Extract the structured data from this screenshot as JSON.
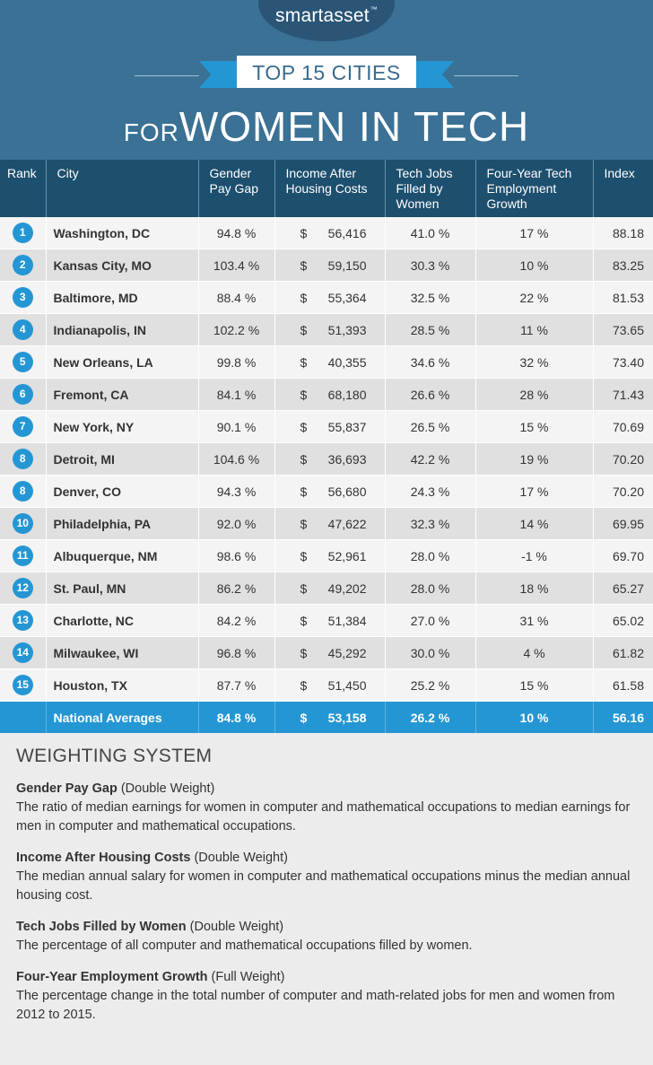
{
  "brand": {
    "name": "smartasset",
    "tm": "™"
  },
  "banner": {
    "ribbon": "TOP 15 CITIES",
    "headline_small": "FOR",
    "headline_large": "WOMEN IN TECH"
  },
  "table": {
    "headers": [
      "Rank",
      "City",
      "Gender Pay Gap",
      "Income After Housing Costs",
      "Tech Jobs Filled by Women",
      "Four-Year Tech Employment Growth",
      "Index"
    ],
    "rows": [
      {
        "rank": "1",
        "city": "Washington, DC",
        "gap": "94.8 %",
        "cur": "$",
        "income": "56,416",
        "tech": "41.0 %",
        "growth": "17 %",
        "index": "88.18"
      },
      {
        "rank": "2",
        "city": "Kansas City, MO",
        "gap": "103.4 %",
        "cur": "$",
        "income": "59,150",
        "tech": "30.3 %",
        "growth": "10 %",
        "index": "83.25"
      },
      {
        "rank": "3",
        "city": "Baltimore, MD",
        "gap": "88.4 %",
        "cur": "$",
        "income": "55,364",
        "tech": "32.5 %",
        "growth": "22 %",
        "index": "81.53"
      },
      {
        "rank": "4",
        "city": "Indianapolis, IN",
        "gap": "102.2 %",
        "cur": "$",
        "income": "51,393",
        "tech": "28.5 %",
        "growth": "11 %",
        "index": "73.65"
      },
      {
        "rank": "5",
        "city": "New Orleans, LA",
        "gap": "99.8 %",
        "cur": "$",
        "income": "40,355",
        "tech": "34.6 %",
        "growth": "32 %",
        "index": "73.40"
      },
      {
        "rank": "6",
        "city": "Fremont, CA",
        "gap": "84.1 %",
        "cur": "$",
        "income": "68,180",
        "tech": "26.6 %",
        "growth": "28 %",
        "index": "71.43"
      },
      {
        "rank": "7",
        "city": "New York, NY",
        "gap": "90.1 %",
        "cur": "$",
        "income": "55,837",
        "tech": "26.5 %",
        "growth": "15 %",
        "index": "70.69"
      },
      {
        "rank": "8",
        "city": "Detroit, MI",
        "gap": "104.6 %",
        "cur": "$",
        "income": "36,693",
        "tech": "42.2 %",
        "growth": "19 %",
        "index": "70.20"
      },
      {
        "rank": "8",
        "city": "Denver, CO",
        "gap": "94.3 %",
        "cur": "$",
        "income": "56,680",
        "tech": "24.3 %",
        "growth": "17 %",
        "index": "70.20"
      },
      {
        "rank": "10",
        "city": "Philadelphia, PA",
        "gap": "92.0 %",
        "cur": "$",
        "income": "47,622",
        "tech": "32.3 %",
        "growth": "14 %",
        "index": "69.95"
      },
      {
        "rank": "11",
        "city": "Albuquerque, NM",
        "gap": "98.6 %",
        "cur": "$",
        "income": "52,961",
        "tech": "28.0 %",
        "growth": "-1 %",
        "index": "69.70"
      },
      {
        "rank": "12",
        "city": "St. Paul, MN",
        "gap": "86.2 %",
        "cur": "$",
        "income": "49,202",
        "tech": "28.0 %",
        "growth": "18 %",
        "index": "65.27"
      },
      {
        "rank": "13",
        "city": "Charlotte, NC",
        "gap": "84.2 %",
        "cur": "$",
        "income": "51,384",
        "tech": "27.0 %",
        "growth": "31 %",
        "index": "65.02"
      },
      {
        "rank": "14",
        "city": "Milwaukee, WI",
        "gap": "96.8 %",
        "cur": "$",
        "income": "45,292",
        "tech": "30.0 %",
        "growth": "4 %",
        "index": "61.82"
      },
      {
        "rank": "15",
        "city": "Houston, TX",
        "gap": "87.7 %",
        "cur": "$",
        "income": "51,450",
        "tech": "25.2 %",
        "growth": "15 %",
        "index": "61.58"
      }
    ],
    "average": {
      "label": "National Averages",
      "gap": "84.8 %",
      "cur": "$",
      "income": "53,158",
      "tech": "26.2 %",
      "growth": "10 %",
      "index": "56.16"
    }
  },
  "weighting": {
    "title": "WEIGHTING SYSTEM",
    "items": [
      {
        "name": "Gender Pay Gap",
        "weight": " (Double Weight)",
        "desc": "The ratio of median earnings for women in computer and mathematical occupations to median earnings for men in computer and mathematical occupations."
      },
      {
        "name": "Income After Housing Costs",
        "weight": " (Double Weight)",
        "desc": "The median annual salary for women in computer and mathematical occupations minus the median annual housing cost."
      },
      {
        "name": "Tech Jobs Filled by Women",
        "weight": " (Double Weight)",
        "desc": "The percentage of all computer and mathematical occupations filled by women."
      },
      {
        "name": "Four-Year Employment Growth",
        "weight": " (Full Weight)",
        "desc": "The percentage change in the total number of computer and math-related jobs for men and women from 2012 to 2015."
      }
    ]
  },
  "colors": {
    "header_bg": "#3a7195",
    "table_head_bg": "#1d4f6e",
    "accent": "#2596d4"
  }
}
